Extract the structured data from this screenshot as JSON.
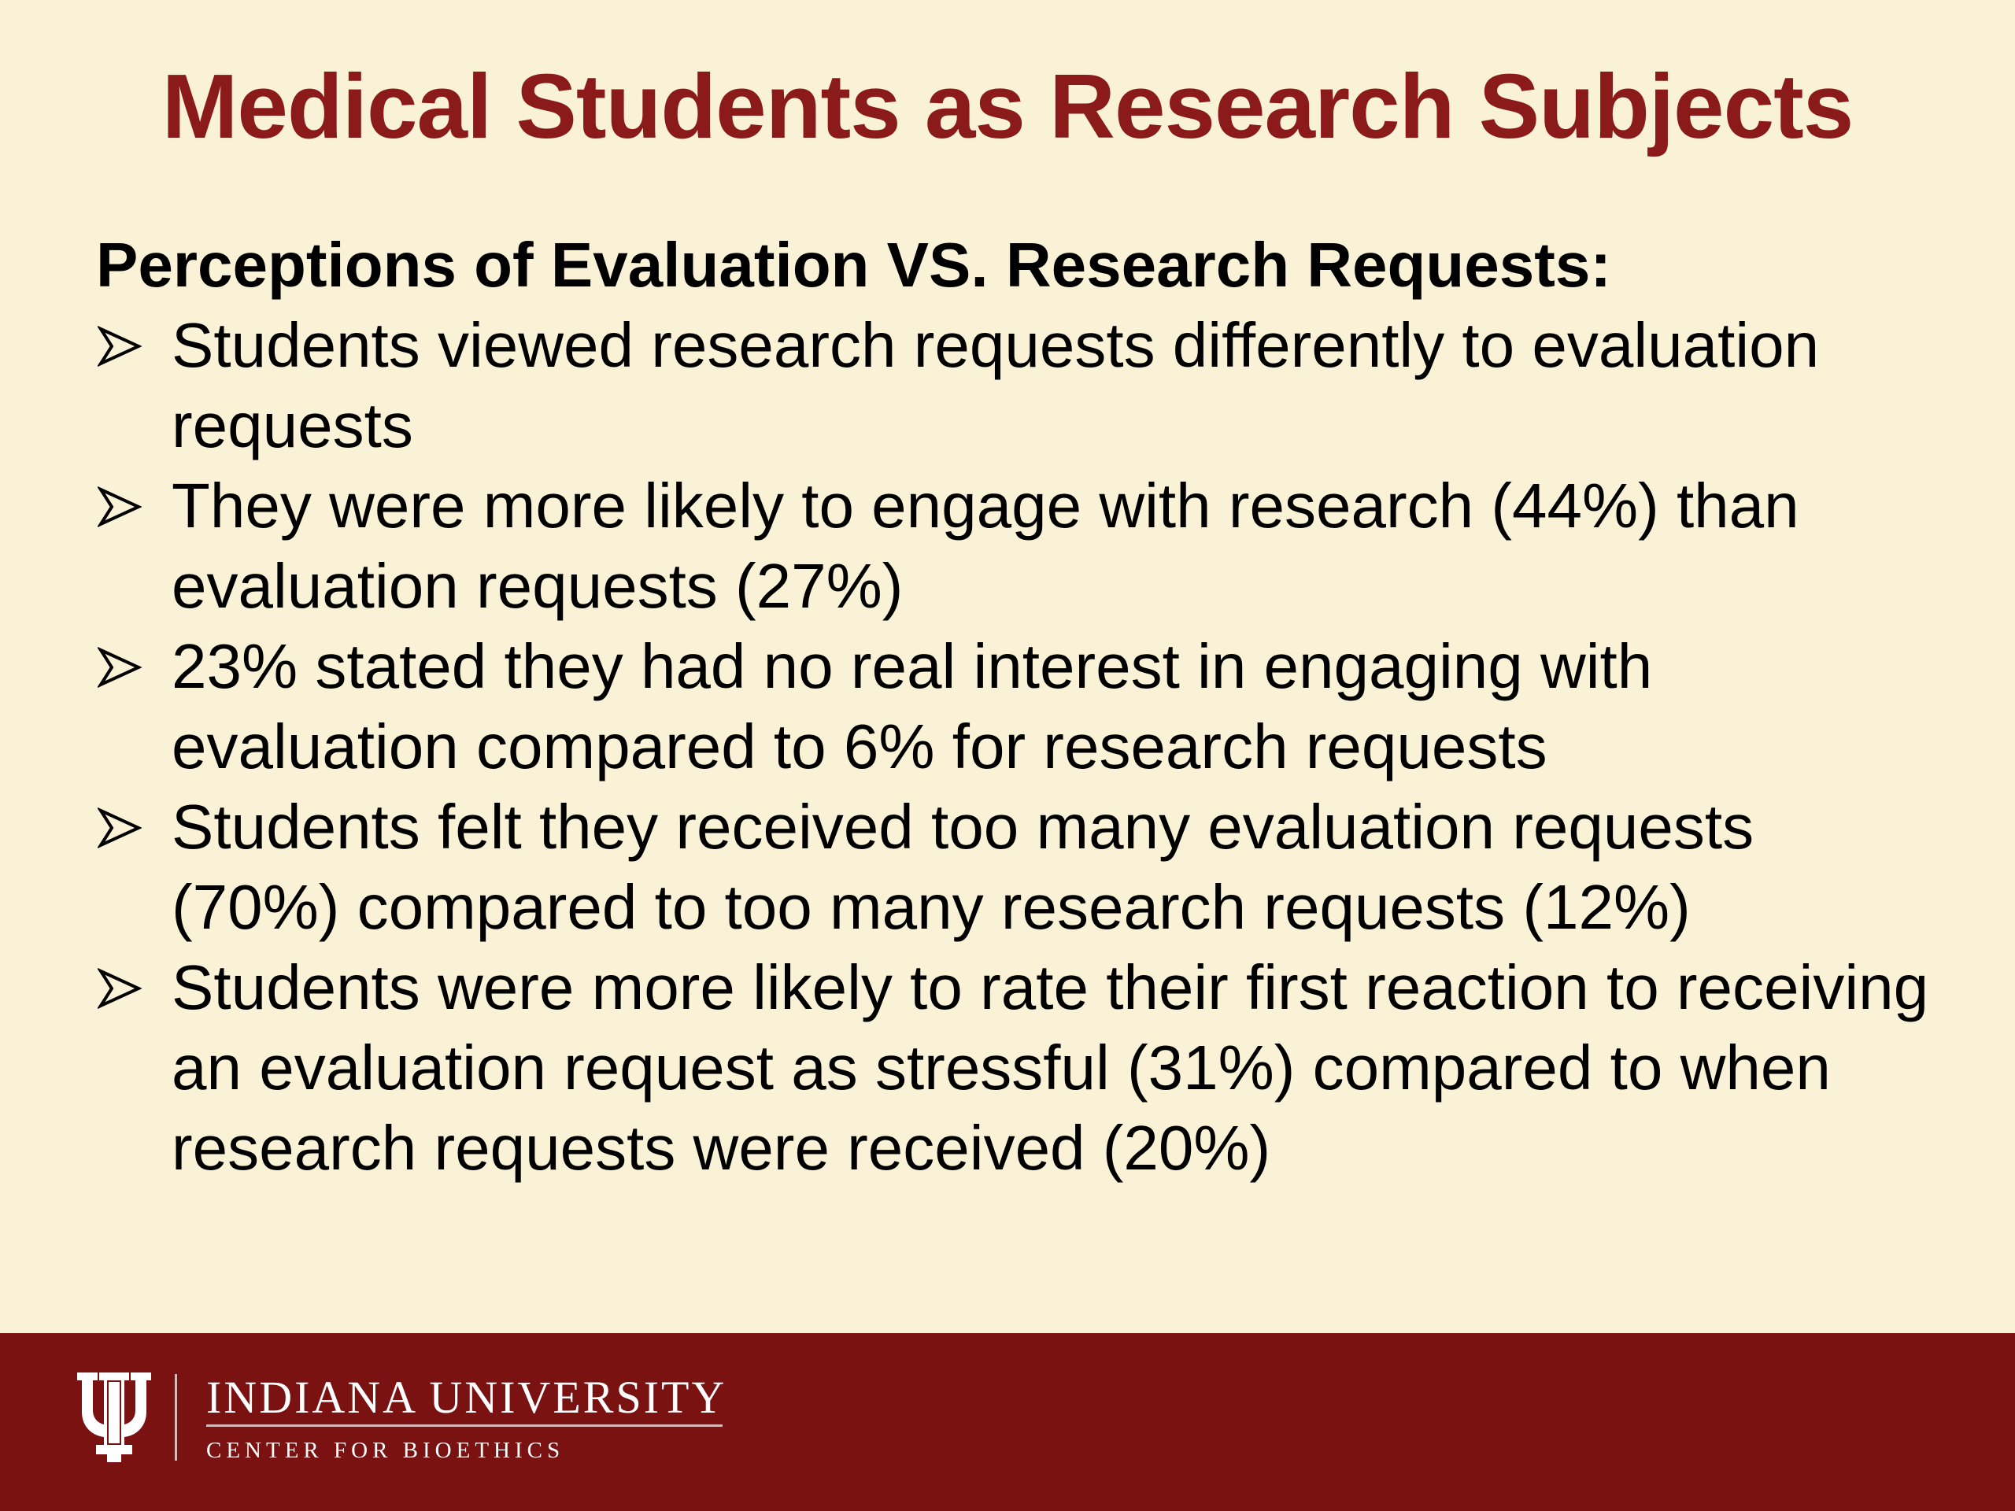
{
  "slide": {
    "title": "Medical Students as Research Subjects",
    "subtitle": "Perceptions of Evaluation VS. Research Requests:",
    "bullets": [
      {
        "text": "Students viewed research requests differently to evaluation requests"
      },
      {
        "text": "They were more likely to engage with research (44%) than evaluation requests (27%)"
      },
      {
        "text": "23% stated they had no real interest in engaging with evaluation compared to 6% for research requests"
      },
      {
        "text": "Students felt they received too many evaluation requests (70%) compared to too many research requests (12%)"
      },
      {
        "text": "Students were more likely to rate their first reaction to receiving an evaluation request as stressful (31%) compared to when research requests were received (20%)"
      }
    ],
    "bullet_icon": "arrowhead-bullet-icon"
  },
  "footer": {
    "logo_icon": "iu-trident-logo-icon",
    "org_name": "INDIANA UNIVERSITY",
    "center_name": "CENTER FOR BIOETHICS"
  },
  "colors": {
    "background": "#f9f2d6",
    "title": "#8b1a1a",
    "footer": "#7a1212",
    "text": "#000000"
  }
}
